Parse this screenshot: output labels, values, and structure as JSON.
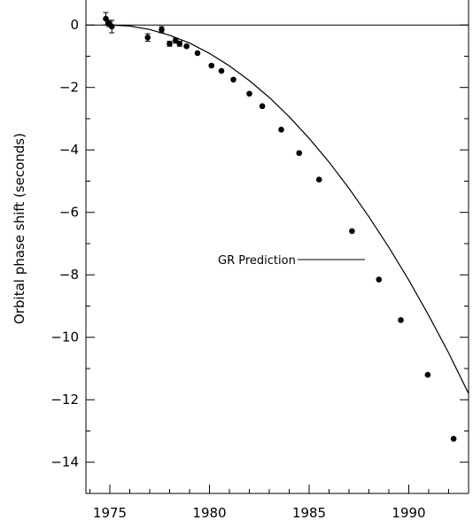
{
  "chart_data": {
    "type": "scatter",
    "title": "",
    "xlabel": "",
    "ylabel": "Orbital phase shift (seconds)",
    "xlim": [
      1973.8,
      1993
    ],
    "ylim": [
      -15,
      0.8
    ],
    "xticks": [
      1975,
      1980,
      1985,
      1990
    ],
    "yticks": [
      0,
      -2,
      -4,
      -6,
      -8,
      -10,
      -12,
      -14
    ],
    "grid": false,
    "legend": "none",
    "annotation": "GR Prediction",
    "points": [
      {
        "x": 1974.8,
        "y": 0.2,
        "err": 0.2
      },
      {
        "x": 1974.95,
        "y": 0.05,
        "err": 0.1
      },
      {
        "x": 1975.1,
        "y": -0.05,
        "err": 0.2
      },
      {
        "x": 1976.9,
        "y": -0.4,
        "err": 0.12
      },
      {
        "x": 1977.6,
        "y": -0.15,
        "err": 0.1
      },
      {
        "x": 1978.0,
        "y": -0.6,
        "err": 0.08
      },
      {
        "x": 1978.3,
        "y": -0.5,
        "err": 0.08
      },
      {
        "x": 1978.5,
        "y": -0.6,
        "err": 0.08
      },
      {
        "x": 1978.85,
        "y": -0.68,
        "err": 0.05
      },
      {
        "x": 1979.4,
        "y": -0.9,
        "err": 0.05
      },
      {
        "x": 1980.1,
        "y": -1.3,
        "err": 0.05
      },
      {
        "x": 1980.6,
        "y": -1.47,
        "err": 0.05
      },
      {
        "x": 1981.2,
        "y": -1.75,
        "err": 0.05
      },
      {
        "x": 1982.0,
        "y": -2.2,
        "err": 0.05
      },
      {
        "x": 1982.65,
        "y": -2.6,
        "err": 0.05
      },
      {
        "x": 1983.6,
        "y": -3.35,
        "err": 0.05
      },
      {
        "x": 1984.5,
        "y": -4.1,
        "err": 0.05
      },
      {
        "x": 1985.5,
        "y": -4.95,
        "err": 0.05
      },
      {
        "x": 1987.15,
        "y": -6.6,
        "err": 0.05
      },
      {
        "x": 1988.5,
        "y": -8.15,
        "err": 0.05
      },
      {
        "x": 1989.6,
        "y": -9.45,
        "err": 0.05
      },
      {
        "x": 1990.95,
        "y": -11.2,
        "err": 0.05
      },
      {
        "x": 1992.25,
        "y": -13.25,
        "err": 0.05
      }
    ],
    "curve": {
      "name": "GR Prediction",
      "x": [
        1975,
        1976,
        1977,
        1978,
        1979,
        1980,
        1981,
        1982,
        1983,
        1984,
        1985,
        1986,
        1987,
        1988,
        1989,
        1990,
        1991,
        1992,
        1993
      ],
      "y": [
        0,
        -0.035,
        -0.145,
        -0.33,
        -0.58,
        -0.91,
        -1.31,
        -1.78,
        -2.32,
        -2.94,
        -3.63,
        -4.39,
        -5.23,
        -6.14,
        -7.12,
        -8.17,
        -9.3,
        -10.5,
        -11.8
      ]
    }
  }
}
